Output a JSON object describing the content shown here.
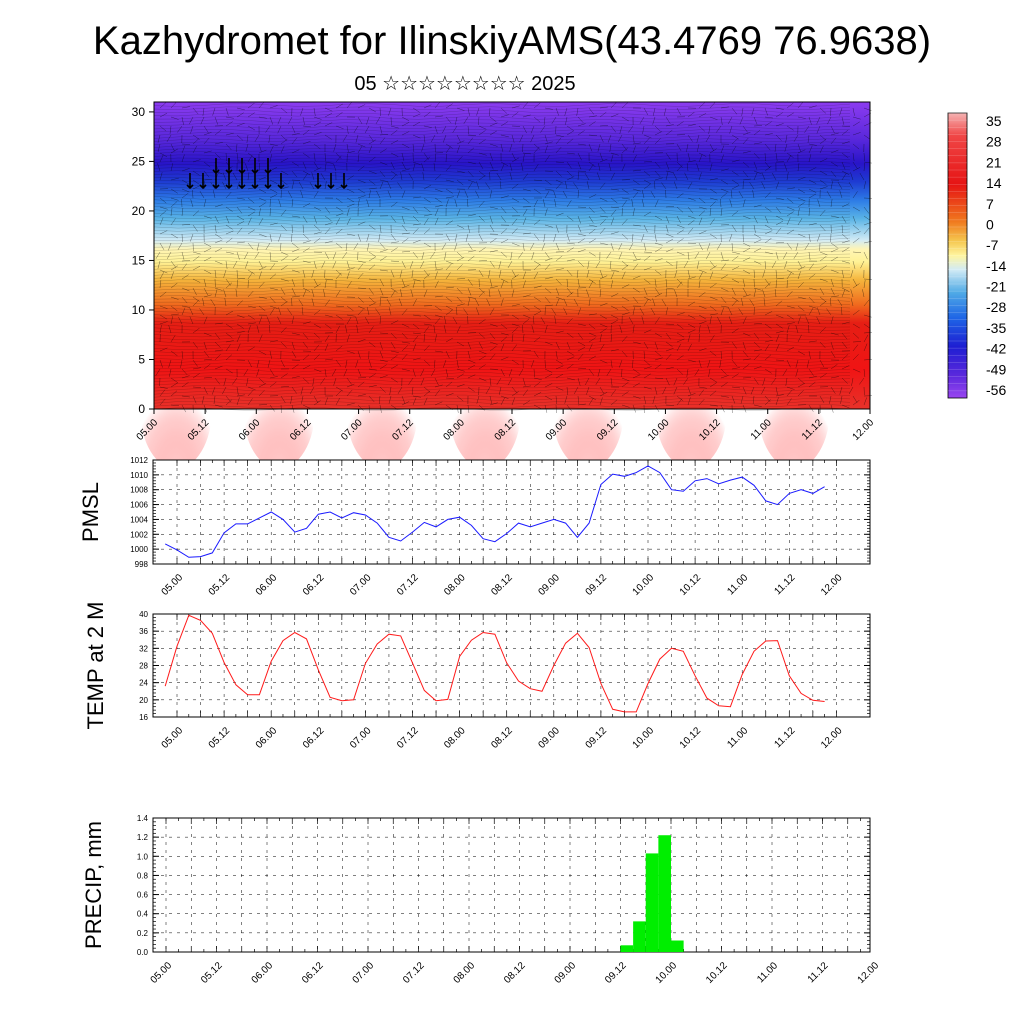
{
  "title": "Kazhydromet for IlinskiyAMS(43.4769 76.9638)",
  "subtitle": "05 ☆☆☆☆☆☆☆☆ 2025",
  "colors": {
    "pmsl_line": "#1a1aff",
    "temp_line": "#ff1a1a",
    "precip_bar": "#00ee00",
    "grid": "#000000"
  },
  "chart_data": [
    {
      "type": "heatmap",
      "name_hint": "cross-section",
      "x_ticks": [
        "05.00",
        "05.12",
        "06.00",
        "06.12",
        "07.00",
        "07.12",
        "08.00",
        "08.12",
        "09.00",
        "09.12",
        "10.00",
        "10.12",
        "11.00",
        "11.12",
        "12.00"
      ],
      "y_ticks": [
        "0",
        "5",
        "10",
        "15",
        "20",
        "25",
        "30"
      ],
      "ylim": [
        0,
        31
      ],
      "colorbar": {
        "labels": [
          "35",
          "28",
          "21",
          "14",
          "7",
          "0",
          "-7",
          "-14",
          "-21",
          "-28",
          "-35",
          "-42",
          "-49",
          "-56"
        ]
      }
    },
    {
      "type": "line",
      "ylabel": "PMSL",
      "ylim": [
        998,
        1012
      ],
      "y_ticks": [
        "1012",
        "1010",
        "1008",
        "1006",
        "1004",
        "1002",
        "1000",
        "998"
      ],
      "x_ticks": [
        "05.00",
        "05.12",
        "06.00",
        "06.12",
        "07.00",
        "07.12",
        "08.00",
        "08.12",
        "09.00",
        "09.12",
        "10.00",
        "10.12",
        "11.00",
        "11.12",
        "12.00"
      ],
      "values": [
        1000.7,
        999.9,
        998.9,
        999.0,
        999.5,
        1002.2,
        1003.4,
        1003.4,
        1004.2,
        1005.0,
        1004.0,
        1002.3,
        1002.8,
        1004.7,
        1005.0,
        1004.2,
        1004.9,
        1004.6,
        1003.5,
        1001.6,
        1001.1,
        1002.3,
        1003.6,
        1003.0,
        1004.0,
        1004.3,
        1003.2,
        1001.4,
        1001.0,
        1002.1,
        1003.5,
        1003.0,
        1003.5,
        1004.0,
        1003.5,
        1001.6,
        1003.5,
        1008.7,
        1010.1,
        1009.8,
        1010.3,
        1011.2,
        1010.3,
        1008.0,
        1007.8,
        1009.2,
        1009.5,
        1008.8,
        1009.3,
        1009.7,
        1008.6,
        1006.5,
        1006.0,
        1007.5,
        1008.0,
        1007.5,
        1008.4
      ]
    },
    {
      "type": "line",
      "ylabel": "TEMP at 2 M",
      "ylim": [
        16,
        40
      ],
      "y_ticks": [
        "40",
        "36",
        "32",
        "28",
        "24",
        "20",
        "16"
      ],
      "x_ticks": [
        "05.00",
        "05.12",
        "06.00",
        "06.12",
        "07.00",
        "07.12",
        "08.00",
        "08.12",
        "09.00",
        "09.12",
        "10.00",
        "10.12",
        "11.00",
        "11.12",
        "12.00"
      ],
      "values": [
        23.2,
        32.5,
        39.7,
        38.5,
        35.5,
        28.7,
        23.5,
        21.2,
        21.2,
        29.0,
        33.8,
        35.7,
        34.2,
        27.0,
        20.6,
        19.8,
        20.0,
        28.5,
        33.0,
        35.3,
        34.9,
        28.6,
        22.2,
        19.8,
        20.1,
        30.1,
        33.9,
        35.7,
        35.3,
        28.6,
        24.4,
        22.6,
        22.0,
        28.0,
        33.2,
        35.5,
        32.2,
        23.8,
        17.8,
        17.2,
        17.2,
        23.8,
        29.5,
        32.0,
        31.3,
        25.6,
        20.4,
        18.6,
        18.4,
        25.9,
        31.3,
        33.7,
        33.8,
        25.6,
        21.5,
        19.9,
        19.6
      ]
    },
    {
      "type": "bar",
      "ylabel": "PRECIP, mm",
      "ylim": [
        0,
        1.4
      ],
      "y_ticks": [
        "1.4",
        "1.2",
        "1.0",
        "0.8",
        "0.6",
        "0.4",
        "0.2",
        "0.0"
      ],
      "x_ticks": [
        "05.00",
        "05.12",
        "06.00",
        "06.12",
        "07.00",
        "07.12",
        "08.00",
        "08.12",
        "09.00",
        "09.12",
        "10.00",
        "10.12",
        "11.00",
        "11.12",
        "12.00"
      ],
      "bars": [
        {
          "x_step": 37,
          "value": 0.07
        },
        {
          "x_step": 38,
          "value": 0.32
        },
        {
          "x_step": 39,
          "value": 1.03
        },
        {
          "x_step": 40,
          "value": 1.22
        },
        {
          "x_step": 41,
          "value": 0.12
        }
      ]
    }
  ]
}
